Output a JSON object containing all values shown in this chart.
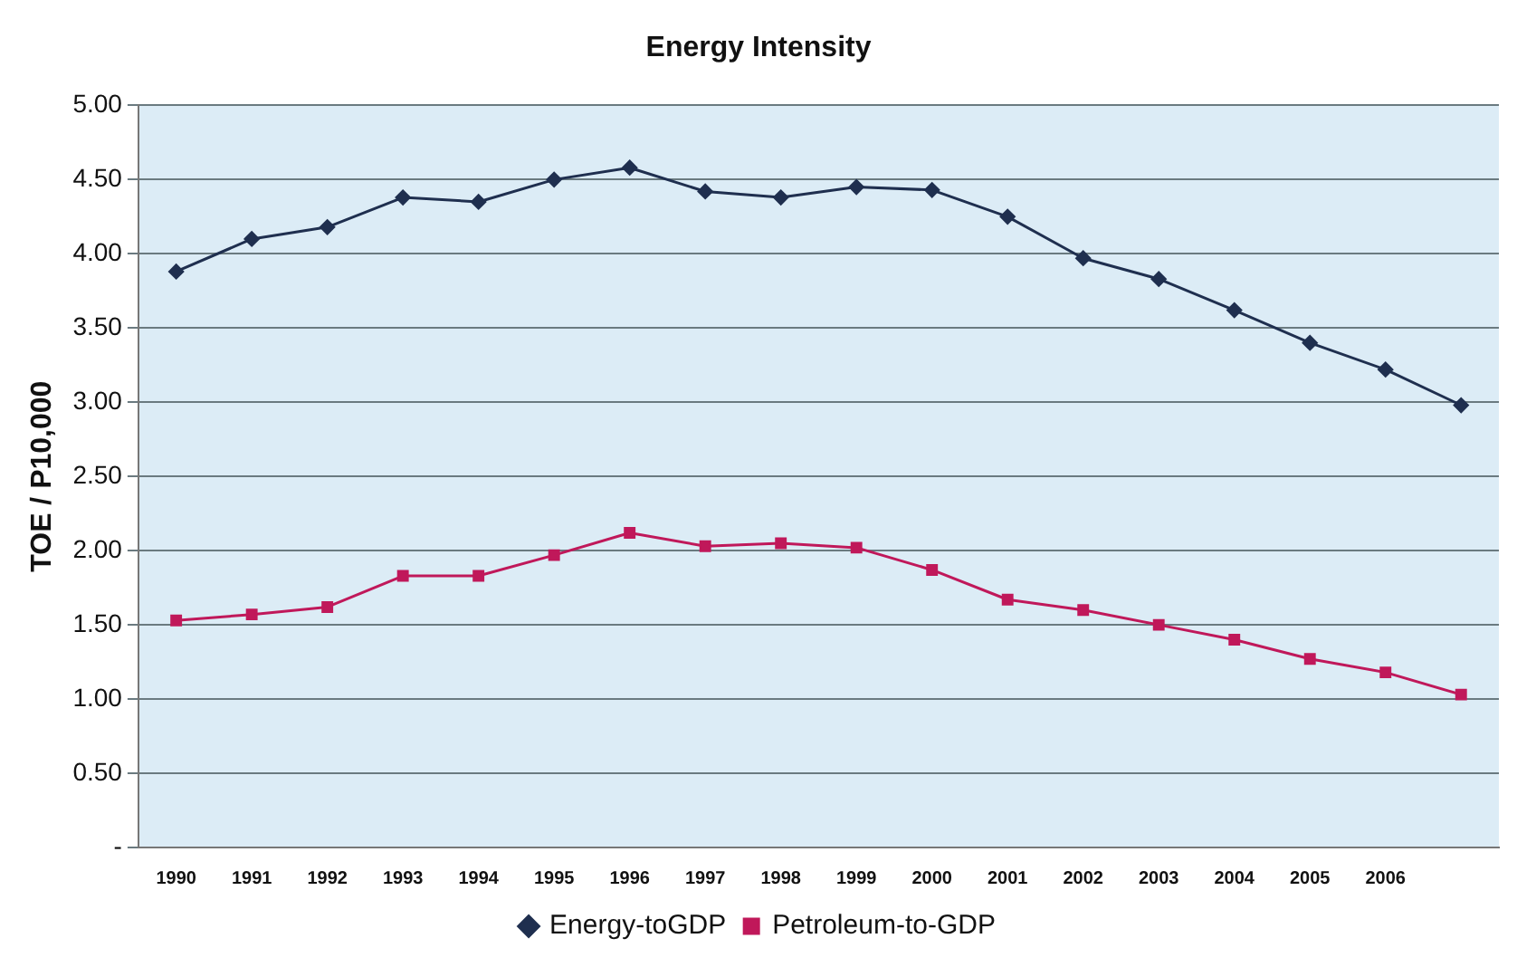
{
  "chart_data": {
    "type": "line",
    "title": "Energy Intensity",
    "ylabel": "TOE / P10,000",
    "categories": [
      "1990",
      "1991",
      "1992",
      "1993",
      "1994",
      "1995",
      "1996",
      "1997",
      "1998",
      "1999",
      "2000",
      "2001",
      "2002",
      "2003",
      "2004",
      "2005",
      "2006",
      null
    ],
    "series": [
      {
        "name": "Energy-toGDP",
        "color": "#1f2f4f",
        "marker": "diamond",
        "values": [
          3.88,
          4.1,
          4.18,
          4.38,
          4.35,
          4.5,
          4.58,
          4.42,
          4.38,
          4.45,
          4.43,
          4.25,
          3.97,
          3.83,
          3.62,
          3.4,
          3.22,
          2.98
        ]
      },
      {
        "name": "Petroleum-to-GDP",
        "color": "#c0185a",
        "marker": "square",
        "values": [
          1.53,
          1.57,
          1.62,
          1.83,
          1.83,
          1.97,
          2.12,
          2.03,
          2.05,
          2.02,
          1.87,
          1.67,
          1.6,
          1.5,
          1.4,
          1.27,
          1.18,
          1.03
        ]
      }
    ],
    "ylim": [
      0,
      5
    ],
    "yticks": [
      {
        "value": 0,
        "label": "-"
      },
      {
        "value": 0.5,
        "label": "0.50"
      },
      {
        "value": 1,
        "label": "1.00"
      },
      {
        "value": 1.5,
        "label": "1.50"
      },
      {
        "value": 2,
        "label": "2.00"
      },
      {
        "value": 2.5,
        "label": "2.50"
      },
      {
        "value": 3,
        "label": "3.00"
      },
      {
        "value": 3.5,
        "label": "3.50"
      },
      {
        "value": 4,
        "label": "4.00"
      },
      {
        "value": 4.5,
        "label": "4.50"
      },
      {
        "value": 5,
        "label": "5.00"
      }
    ],
    "grid": "y",
    "legend": "bottom"
  }
}
